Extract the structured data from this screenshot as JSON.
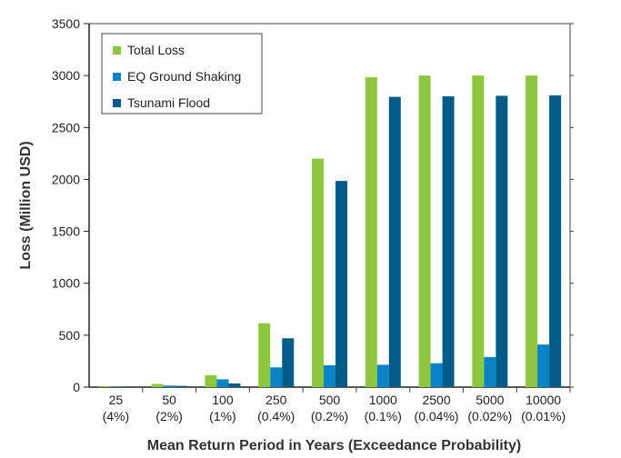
{
  "chart_data": {
    "type": "bar",
    "categories": [
      [
        "25",
        "(4%)"
      ],
      [
        "50",
        "(2%)"
      ],
      [
        "100",
        "(1%)"
      ],
      [
        "250",
        "(0.4%)"
      ],
      [
        "500",
        "(0.2%)"
      ],
      [
        "1000",
        "(0.1%)"
      ],
      [
        "2500",
        "(0.04%)"
      ],
      [
        "5000",
        "(0.02%)"
      ],
      [
        "10000",
        "(0.01%)"
      ]
    ],
    "series": [
      {
        "name": "Total Loss",
        "color": "#8dc63f",
        "values": [
          5,
          30,
          115,
          615,
          2200,
          2985,
          3000,
          3000,
          3000
        ]
      },
      {
        "name": "EQ Ground Shaking",
        "color": "#0a84c6",
        "values": [
          3,
          15,
          75,
          190,
          210,
          215,
          230,
          290,
          410
        ]
      },
      {
        "name": "Tsunami Flood",
        "color": "#005b86",
        "values": [
          2,
          12,
          35,
          470,
          1985,
          2795,
          2800,
          2805,
          2810
        ]
      }
    ],
    "xlabel": "Mean Return Period in Years (Exceedance Probability)",
    "ylabel": "Loss (Million USD)",
    "ylim": [
      0,
      3500
    ],
    "yticks": [
      0,
      500,
      1000,
      1500,
      2000,
      2500,
      3000,
      3500
    ],
    "grid": false,
    "legend_position": "top-left"
  }
}
